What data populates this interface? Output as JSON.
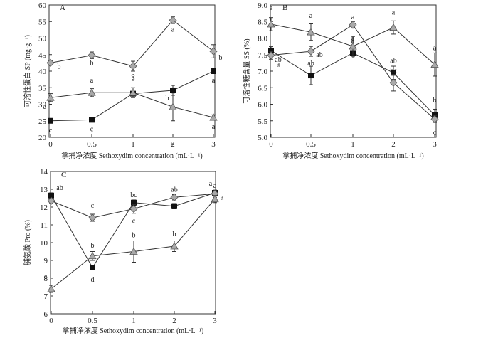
{
  "figure": {
    "colors": {
      "line": "#333333",
      "square": "#111111",
      "diamond": "#a9a9a9",
      "triangle": "#a9a9a9",
      "background": "#ffffff"
    },
    "marker_names": [
      "square",
      "diamond",
      "triangle"
    ]
  },
  "chart_data": [
    {
      "panel": "A",
      "type": "line",
      "x": [
        0,
        0.5,
        1,
        2,
        3
      ],
      "xlabel": "拿捕净浓度 Sethoxydim concentration (mL·L⁻¹)",
      "ylabel": "可溶性蛋白 SP (mg·g⁻¹)",
      "ylim": [
        20,
        60
      ],
      "yticks": [
        20,
        25,
        30,
        35,
        40,
        45,
        50,
        55,
        60
      ],
      "xticks": [
        0,
        0.5,
        1,
        2,
        3
      ],
      "grid": false,
      "series": [
        {
          "marker": "square",
          "values": [
            25.0,
            25.3,
            33.2,
            34.2,
            40.0
          ],
          "errors": [
            0.3,
            0.5,
            0.6,
            1.5,
            0.4
          ],
          "labels": [
            "c",
            "c",
            "b",
            "b",
            "a"
          ]
        },
        {
          "marker": "diamond",
          "values": [
            42.5,
            44.8,
            41.5,
            55.4,
            46.0
          ],
          "errors": [
            0.6,
            1.0,
            1.5,
            1.0,
            2.0
          ],
          "labels": [
            "b",
            "b",
            "b",
            "a",
            "b"
          ]
        },
        {
          "marker": "triangle",
          "values": [
            32.0,
            33.5,
            33.5,
            29.2,
            26.0
          ],
          "errors": [
            1.2,
            1.2,
            1.5,
            4.2,
            0.8
          ],
          "labels": [
            "a",
            "a",
            "a",
            "a",
            "a"
          ]
        }
      ]
    },
    {
      "panel": "B",
      "type": "line",
      "x": [
        0,
        0.5,
        1,
        2,
        3
      ],
      "xlabel": "拿捕净浓度 Sethoxydim concentration (mL·L⁻¹)",
      "ylabel": "可溶性糖含量 SS (%)",
      "ylim": [
        5.0,
        9.0
      ],
      "yticks": [
        5.0,
        5.5,
        6.0,
        6.5,
        7.0,
        7.5,
        8.0,
        8.5,
        9.0
      ],
      "xticks": [
        0,
        0.5,
        1,
        2,
        3
      ],
      "grid": false,
      "series": [
        {
          "marker": "square",
          "values": [
            7.62,
            6.87,
            7.55,
            6.95,
            5.67
          ],
          "errors": [
            0.12,
            0.28,
            0.15,
            0.2,
            0.18
          ],
          "labels": [
            "ab",
            "ab",
            "a",
            "ab",
            "b"
          ]
        },
        {
          "marker": "diamond",
          "values": [
            7.48,
            7.6,
            8.4,
            6.65,
            5.55
          ],
          "errors": [
            0.12,
            0.15,
            0.1,
            0.25,
            0.1
          ],
          "labels": [
            "a",
            "ab",
            "a",
            "bc",
            "c"
          ]
        },
        {
          "marker": "triangle",
          "values": [
            8.42,
            8.18,
            7.75,
            8.32,
            7.2
          ],
          "errors": [
            0.2,
            0.25,
            0.3,
            0.2,
            0.35
          ],
          "labels": [
            "a",
            "a",
            "a",
            "a",
            "a"
          ]
        }
      ]
    },
    {
      "panel": "C",
      "type": "line",
      "x": [
        0,
        0.5,
        1,
        2,
        3
      ],
      "xlabel": "拿捕净浓度 Sethoxydim concentration (mL·L⁻¹)",
      "ylabel": "脯氨酸 Pro (%)",
      "ylim": [
        6,
        14
      ],
      "yticks": [
        6,
        7,
        8,
        9,
        10,
        11,
        12,
        13,
        14
      ],
      "xticks": [
        0,
        0.5,
        1,
        2,
        3
      ],
      "grid": false,
      "series": [
        {
          "marker": "square",
          "values": [
            12.65,
            8.6,
            12.25,
            12.05,
            12.8
          ],
          "errors": [
            0.15,
            0.1,
            0.15,
            0.15,
            0.15
          ],
          "labels": [
            "ab",
            "d",
            "bc",
            "",
            "a"
          ]
        },
        {
          "marker": "diamond",
          "values": [
            12.35,
            11.4,
            11.9,
            12.55,
            12.75
          ],
          "errors": [
            0.15,
            0.2,
            0.25,
            0.15,
            0.2
          ],
          "labels": [
            "",
            "c",
            "c",
            "ab",
            "a"
          ]
        },
        {
          "marker": "triangle",
          "values": [
            7.4,
            9.25,
            9.5,
            9.8,
            12.45
          ],
          "errors": [
            0.2,
            0.25,
            0.6,
            0.3,
            0.2
          ],
          "labels": [
            "c",
            "b",
            "b",
            "b",
            "a"
          ]
        }
      ]
    }
  ]
}
